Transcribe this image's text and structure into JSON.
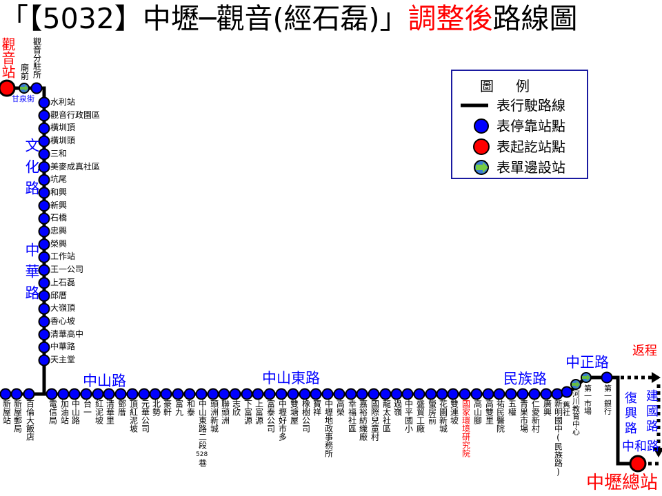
{
  "title": {
    "part1": "「【5032】中壢─觀音(經石磊)」",
    "highlight": "調整後",
    "part2": "路線圖"
  },
  "colors": {
    "line": "#000000",
    "stop": "#0000ff",
    "terminal": "#ff0000",
    "one_side": "#66bb44",
    "road": "#0000ff",
    "accent": "#ff0000"
  },
  "legend": {
    "title": "圖　例",
    "items": [
      {
        "icon": "line",
        "label": "表行駛路線"
      },
      {
        "icon": "stop",
        "label": "表停靠站點"
      },
      {
        "icon": "terminal",
        "label": "表起訖站點"
      },
      {
        "icon": "one-side",
        "label": "表單邊設站"
      }
    ]
  },
  "terminals": {
    "start": "觀音站",
    "end": "中壢總站"
  },
  "top_stops": [
    {
      "name": "廟前",
      "type": "one-side"
    },
    {
      "name": "觀音分駐所",
      "type": "stop"
    }
  ],
  "gan_quan_street": "甘泉街",
  "vertical_stops": [
    "水利站",
    "觀音行政園區",
    "橫圳頂",
    "橫圳頭",
    "三和",
    "美麥成真社區",
    "坑尾",
    "和興",
    "新興",
    "石橋",
    "忠興",
    "榮興",
    "工作站",
    "王一公司",
    "上石磊",
    "邱厝",
    "大嶺頂",
    "香心坡",
    "清華高中",
    "中華路",
    "天主堂"
  ],
  "bottom_stops": [
    {
      "name": "新屋站"
    },
    {
      "name": "新屋郵局"
    },
    {
      "name": "百倫大飯店"
    },
    {
      "name": "電信局"
    },
    {
      "name": "加油站"
    },
    {
      "name": "中山路"
    },
    {
      "name": "台一"
    },
    {
      "name": "紅泥坡"
    },
    {
      "name": "清華里"
    },
    {
      "name": "鄧厝"
    },
    {
      "name": "頂紅泥坡"
    },
    {
      "name": "元華公司"
    },
    {
      "name": "北勢"
    },
    {
      "name": "豪軒"
    },
    {
      "name": "富九"
    },
    {
      "name": "和泰"
    },
    {
      "name": "中山東路二段",
      "sub": "528",
      "tail": "巷"
    },
    {
      "name": "頭洲新城"
    },
    {
      "name": "聯頭洲"
    },
    {
      "name": "志欣"
    },
    {
      "name": "下富源"
    },
    {
      "name": "上富源"
    },
    {
      "name": "富泰公司"
    },
    {
      "name": "中壢好市多"
    },
    {
      "name": "雙塘屋"
    },
    {
      "name": "橡樹公司"
    },
    {
      "name": "寶祥"
    },
    {
      "name": "中壢地政事務所"
    },
    {
      "name": "高榮"
    },
    {
      "name": "幸福社區"
    },
    {
      "name": "嘉裕紡織廠"
    },
    {
      "name": "國際兒童村"
    },
    {
      "name": "龍太社區"
    },
    {
      "name": "過嶺"
    },
    {
      "name": "中平國小"
    },
    {
      "name": "盛貿工廠"
    },
    {
      "name": "螢房前"
    },
    {
      "name": "花園新城"
    },
    {
      "name": "雙連坡"
    },
    {
      "name": "國家環境研究院",
      "highlight": true
    },
    {
      "name": "高山腳"
    },
    {
      "name": "高雙里"
    },
    {
      "name": "祐民醫院"
    },
    {
      "name": "五權"
    },
    {
      "name": "青果市場"
    },
    {
      "name": "仁愛新村"
    },
    {
      "name": "廣興"
    },
    {
      "name": "新明國中(民族路)"
    }
  ],
  "east_stops": [
    {
      "name": "舊社",
      "type": "stop"
    },
    {
      "name": "河川教育中心",
      "type": "one-side"
    },
    {
      "name": "第一市場",
      "type": "one-side"
    },
    {
      "name": "第一銀行",
      "type": "stop"
    }
  ],
  "roads": {
    "wenhua": "文化路",
    "zhonghua": "中華路",
    "zhongshan": "中山路",
    "zhongshan_east": "中山東路",
    "minzu": "民族路",
    "zhongzheng": "中正路",
    "fuxing": "復興路",
    "jianguo": "建國路",
    "zhonghe": "中和路"
  },
  "return_trip": "返程"
}
